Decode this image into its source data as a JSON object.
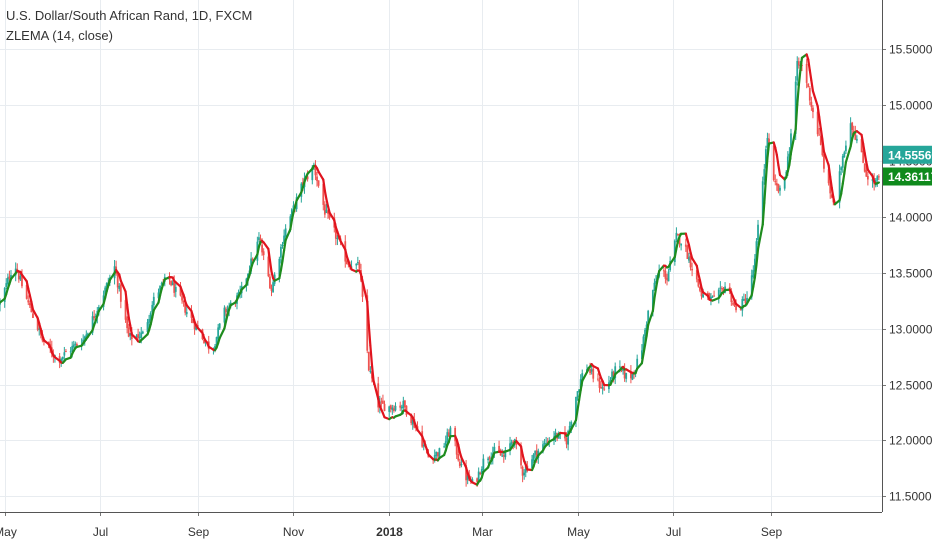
{
  "chart_data": {
    "type": "candlestick",
    "title": "U.S. Dollar/South African Rand, 1D, FXCM",
    "indicator": "ZLEMA (14, close)",
    "y_axis": {
      "position": "right",
      "ylim": [
        11.36,
        15.94
      ],
      "ticks": [
        11.5,
        12.0,
        12.5,
        13.0,
        13.5,
        14.0,
        14.5,
        15.0,
        15.5
      ],
      "tick_labels": [
        "11.50000",
        "12.00000",
        "12.50000",
        "13.00000",
        "13.50000",
        "14.00000",
        "14.50000",
        "15.00000",
        "15.50000"
      ]
    },
    "x_axis": {
      "ticks": [
        {
          "label": "May",
          "day": 0,
          "bold": false
        },
        {
          "label": "Jul",
          "day": 61,
          "bold": false
        },
        {
          "label": "Sep",
          "day": 123,
          "bold": false
        },
        {
          "label": "Nov",
          "day": 184,
          "bold": false
        },
        {
          "label": "2018",
          "day": 245,
          "bold": true
        },
        {
          "label": "Mar",
          "day": 304,
          "bold": false
        },
        {
          "label": "May",
          "day": 365,
          "bold": false
        },
        {
          "label": "Jul",
          "day": 426,
          "bold": false
        },
        {
          "label": "Sep",
          "day": 488,
          "bold": false
        }
      ]
    },
    "grid": true,
    "price_labels": [
      {
        "value": 14.5556,
        "text": "14.55560",
        "color": "#26a69a"
      },
      {
        "value": 14.36117,
        "text": "14.36117",
        "color": "#0f8a1c"
      }
    ],
    "colors": {
      "up": "#26a69a",
      "down": "#ef5350",
      "zlema_up": "#1e8c1e",
      "zlema_down": "#e0141e"
    },
    "anchors": [
      {
        "d": -3,
        "c": 13.22
      },
      {
        "d": 6,
        "c": 13.6
      },
      {
        "d": 13,
        "c": 13.3
      },
      {
        "d": 24,
        "c": 12.9
      },
      {
        "d": 34,
        "c": 12.72
      },
      {
        "d": 42,
        "c": 12.82
      },
      {
        "d": 50,
        "c": 12.9
      },
      {
        "d": 58,
        "c": 13.15
      },
      {
        "d": 70,
        "c": 13.55
      },
      {
        "d": 79,
        "c": 12.92
      },
      {
        "d": 88,
        "c": 12.95
      },
      {
        "d": 96,
        "c": 13.3
      },
      {
        "d": 104,
        "c": 13.46
      },
      {
        "d": 114,
        "c": 13.2
      },
      {
        "d": 124,
        "c": 12.97
      },
      {
        "d": 132,
        "c": 12.8
      },
      {
        "d": 140,
        "c": 13.15
      },
      {
        "d": 150,
        "c": 13.3
      },
      {
        "d": 162,
        "c": 13.8
      },
      {
        "d": 170,
        "c": 13.35
      },
      {
        "d": 178,
        "c": 13.85
      },
      {
        "d": 190,
        "c": 14.3
      },
      {
        "d": 197,
        "c": 14.45
      },
      {
        "d": 204,
        "c": 14.05
      },
      {
        "d": 212,
        "c": 13.8
      },
      {
        "d": 218,
        "c": 13.6
      },
      {
        "d": 226,
        "c": 13.55
      },
      {
        "d": 232,
        "c": 12.65
      },
      {
        "d": 238,
        "c": 12.32
      },
      {
        "d": 245,
        "c": 12.3
      },
      {
        "d": 254,
        "c": 12.32
      },
      {
        "d": 262,
        "c": 12.12
      },
      {
        "d": 270,
        "c": 11.85
      },
      {
        "d": 278,
        "c": 11.9
      },
      {
        "d": 284,
        "c": 12.1
      },
      {
        "d": 292,
        "c": 11.7
      },
      {
        "d": 299,
        "c": 11.6
      },
      {
        "d": 306,
        "c": 11.85
      },
      {
        "d": 312,
        "c": 11.9
      },
      {
        "d": 318,
        "c": 11.85
      },
      {
        "d": 324,
        "c": 12.02
      },
      {
        "d": 330,
        "c": 11.72
      },
      {
        "d": 338,
        "c": 11.88
      },
      {
        "d": 350,
        "c": 12.05
      },
      {
        "d": 358,
        "c": 12.0
      },
      {
        "d": 364,
        "c": 12.4
      },
      {
        "d": 370,
        "c": 12.68
      },
      {
        "d": 376,
        "c": 12.55
      },
      {
        "d": 382,
        "c": 12.45
      },
      {
        "d": 390,
        "c": 12.65
      },
      {
        "d": 398,
        "c": 12.55
      },
      {
        "d": 405,
        "c": 12.75
      },
      {
        "d": 412,
        "c": 13.3
      },
      {
        "d": 418,
        "c": 13.55
      },
      {
        "d": 422,
        "c": 13.45
      },
      {
        "d": 428,
        "c": 13.82
      },
      {
        "d": 432,
        "c": 13.78
      },
      {
        "d": 438,
        "c": 13.55
      },
      {
        "d": 444,
        "c": 13.3
      },
      {
        "d": 452,
        "c": 13.25
      },
      {
        "d": 460,
        "c": 13.4
      },
      {
        "d": 466,
        "c": 13.15
      },
      {
        "d": 474,
        "c": 13.3
      },
      {
        "d": 478,
        "c": 13.6
      },
      {
        "d": 482,
        "c": 14.2
      },
      {
        "d": 486,
        "c": 14.72
      },
      {
        "d": 490,
        "c": 14.3
      },
      {
        "d": 495,
        "c": 14.2
      },
      {
        "d": 500,
        "c": 14.6
      },
      {
        "d": 505,
        "c": 15.35
      },
      {
        "d": 509,
        "c": 15.35
      },
      {
        "d": 514,
        "c": 15.0
      },
      {
        "d": 519,
        "c": 14.7
      },
      {
        "d": 524,
        "c": 14.3
      },
      {
        "d": 529,
        "c": 14.1
      },
      {
        "d": 534,
        "c": 14.55
      },
      {
        "d": 539,
        "c": 14.85
      },
      {
        "d": 544,
        "c": 14.65
      },
      {
        "d": 549,
        "c": 14.38
      },
      {
        "d": 554,
        "c": 14.3
      },
      {
        "d": 558,
        "c": 14.36
      }
    ]
  }
}
